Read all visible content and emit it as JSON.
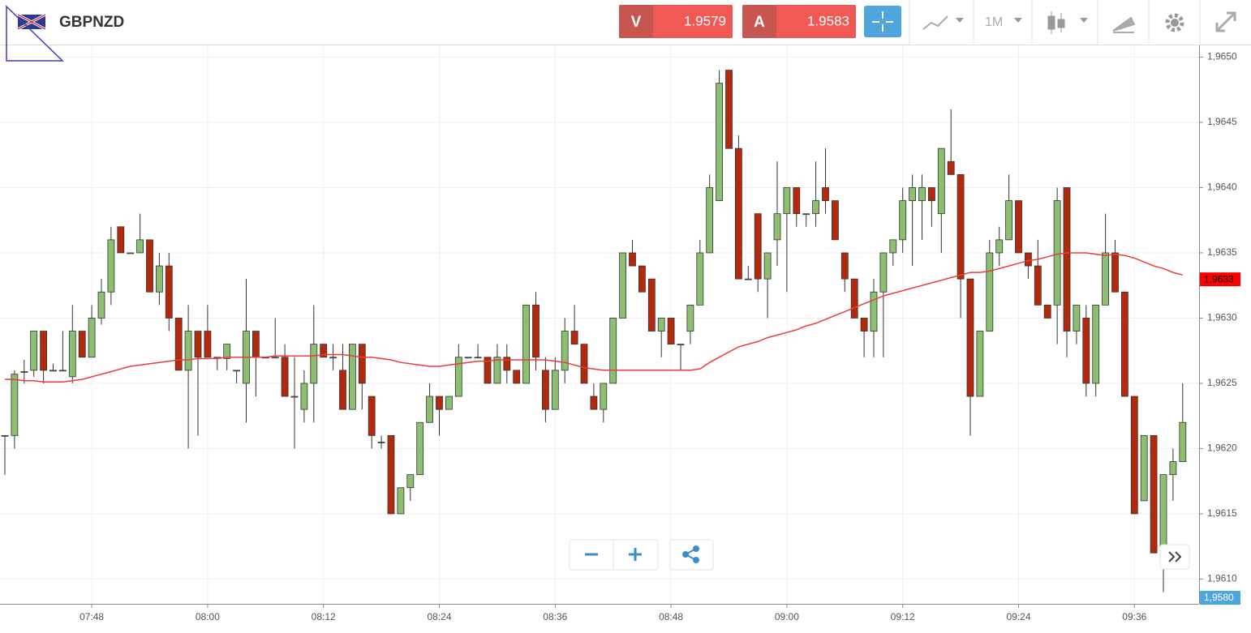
{
  "toolbar": {
    "bid_label": "V",
    "bid": 1.9579,
    "ask_label": "A",
    "ask": 1.9583,
    "timeframe": "1M"
  },
  "chart_data": {
    "type": "candlestick",
    "title": "GBPNZD",
    "categories": [
      null,
      null,
      null,
      null,
      null,
      null,
      null,
      null,
      null,
      "07:48",
      null,
      null,
      null,
      null,
      null,
      null,
      null,
      null,
      null,
      null,
      null,
      "08:00",
      null,
      null,
      null,
      null,
      null,
      null,
      null,
      null,
      null,
      null,
      null,
      "08:12",
      null,
      null,
      null,
      null,
      null,
      null,
      null,
      null,
      null,
      null,
      null,
      "08:24",
      null,
      null,
      null,
      null,
      null,
      null,
      null,
      null,
      null,
      null,
      null,
      "08:36",
      null,
      null,
      null,
      null,
      null,
      null,
      null,
      null,
      null,
      null,
      null,
      "08:48",
      null,
      null,
      null,
      null,
      null,
      null,
      null,
      null,
      null,
      null,
      null,
      "09:00",
      null,
      null,
      null,
      null,
      null,
      null,
      null,
      null,
      null,
      null,
      null,
      "09:12",
      null,
      null,
      null,
      null,
      null,
      null,
      null,
      null,
      null,
      null,
      null,
      "09:24",
      null,
      null,
      null,
      null,
      null,
      null,
      null,
      null,
      null,
      null,
      null,
      "09:36",
      null,
      null,
      null,
      null,
      null
    ],
    "open": [
      1.9621,
      1.9621,
      1.96259,
      1.9626,
      1.9629,
      1.9626,
      1.9626,
      1.96255,
      1.9629,
      1.9627,
      1.963,
      1.9632,
      1.9637,
      1.9635,
      1.9635,
      1.9636,
      1.9632,
      1.9634,
      1.963,
      1.9626,
      1.9629,
      1.9629,
      1.9627,
      1.96269,
      1.9626,
      1.9625,
      1.9629,
      1.9627,
      1.9627,
      1.9627,
      1.9624,
      1.9623,
      1.9625,
      1.9628,
      1.9627,
      1.9626,
      1.9623,
      1.9628,
      1.9624,
      1.96205,
      1.9621,
      1.9615,
      1.9617,
      1.9618,
      1.9622,
      1.9624,
      1.9623,
      1.9624,
      1.9627,
      1.9627,
      1.9627,
      1.9625,
      1.9627,
      1.9626,
      1.9625,
      1.9631,
      1.9626,
      1.9623,
      1.9626,
      1.9629,
      1.9628,
      1.9624,
      1.9623,
      1.9625,
      1.963,
      1.9635,
      1.9634,
      1.9633,
      1.9629,
      1.963,
      1.9628,
      1.9629,
      1.9631,
      1.9635,
      1.9639,
      1.9649,
      1.9643,
      1.9633,
      1.9638,
      1.9633,
      1.9636,
      1.9638,
      1.964,
      1.9638,
      1.9638,
      1.964,
      1.9639,
      1.9635,
      1.9633,
      1.963,
      1.9629,
      1.9632,
      1.9635,
      1.9636,
      1.9639,
      1.9639,
      1.964,
      1.9638,
      1.9642,
      1.9641,
      1.9633,
      1.9624,
      1.9629,
      1.9635,
      1.9636,
      1.9639,
      1.9635,
      1.9634,
      1.9631,
      1.9631,
      1.964,
      1.9629,
      1.963,
      1.9625,
      1.9631,
      1.9635,
      1.9632,
      1.9624,
      1.9616,
      1.9621,
      1.9612,
      1.9618,
      1.9619
    ],
    "high": [
      1.9621,
      1.9626,
      1.96268,
      1.9629,
      1.9629,
      1.96265,
      1.9629,
      1.9631,
      1.9629,
      1.9631,
      1.9633,
      1.9637,
      1.9637,
      1.9635,
      1.9638,
      1.9636,
      1.9635,
      1.9635,
      1.963,
      1.9631,
      1.9629,
      1.9631,
      1.9627,
      1.9628,
      1.9626,
      1.9633,
      1.9629,
      1.9627,
      1.963,
      1.9628,
      1.9627,
      1.9626,
      1.9631,
      1.9628,
      1.9628,
      1.9628,
      1.9628,
      1.9628,
      1.9624,
      1.9621,
      1.9621,
      1.9617,
      1.9618,
      1.9622,
      1.9625,
      1.9624,
      1.9624,
      1.9628,
      1.9627,
      1.9628,
      1.9627,
      1.9628,
      1.9628,
      1.9626,
      1.9631,
      1.9632,
      1.9627,
      1.9627,
      1.963,
      1.9631,
      1.9628,
      1.9625,
      1.9625,
      1.963,
      1.9635,
      1.9636,
      1.9634,
      1.9633,
      1.963,
      1.963,
      1.9628,
      1.9631,
      1.9636,
      1.9641,
      1.9649,
      1.9649,
      1.9644,
      1.9634,
      1.9638,
      1.9635,
      1.9642,
      1.964,
      1.964,
      1.9638,
      1.9642,
      1.9643,
      1.9639,
      1.9635,
      1.9633,
      1.963,
      1.9633,
      1.9635,
      1.9636,
      1.964,
      1.9641,
      1.9641,
      1.964,
      1.9643,
      1.9646,
      1.9641,
      1.9633,
      1.9629,
      1.9636,
      1.9637,
      1.9641,
      1.9639,
      1.9635,
      1.9636,
      1.9631,
      1.964,
      1.964,
      1.9631,
      1.9631,
      1.9631,
      1.9638,
      1.9636,
      1.9632,
      1.9624,
      1.9621,
      1.9621,
      1.9618,
      1.962,
      1.9625
    ],
    "low": [
      1.9618,
      1.962,
      1.9625,
      1.96255,
      1.9625,
      1.9626,
      1.9626,
      1.9625,
      1.9627,
      1.9627,
      1.96295,
      1.9631,
      1.9635,
      1.9635,
      1.9635,
      1.9632,
      1.9631,
      1.9629,
      1.9626,
      1.962,
      1.9621,
      1.9627,
      1.9626,
      1.9626,
      1.9625,
      1.9622,
      1.9624,
      1.9627,
      1.9627,
      1.9624,
      1.962,
      1.9622,
      1.9622,
      1.9627,
      1.9626,
      1.9623,
      1.9623,
      1.9623,
      1.962,
      1.962,
      1.9615,
      1.9615,
      1.9616,
      1.9618,
      1.9622,
      1.9621,
      1.9623,
      1.9624,
      1.9627,
      1.9627,
      1.9625,
      1.9625,
      1.9625,
      1.9625,
      1.9625,
      1.9626,
      1.9622,
      1.9623,
      1.9625,
      1.9628,
      1.9625,
      1.9623,
      1.9622,
      1.9625,
      1.963,
      1.9634,
      1.9632,
      1.9629,
      1.9627,
      1.9628,
      1.9626,
      1.9628,
      1.9631,
      1.9635,
      1.9639,
      1.9643,
      1.9633,
      1.9633,
      1.9632,
      1.963,
      1.9634,
      1.9632,
      1.9637,
      1.9637,
      1.9637,
      1.9638,
      1.9636,
      1.9632,
      1.963,
      1.9627,
      1.9627,
      1.9627,
      1.9634,
      1.9635,
      1.9634,
      1.9636,
      1.9637,
      1.9635,
      1.9641,
      1.963,
      1.9621,
      1.9624,
      1.9629,
      1.9634,
      1.9636,
      1.9635,
      1.9633,
      1.9631,
      1.963,
      1.9628,
      1.9627,
      1.9628,
      1.9624,
      1.9624,
      1.9631,
      1.9632,
      1.9624,
      1.9615,
      1.9616,
      1.9612,
      1.9609,
      1.9616,
      1.9619
    ],
    "close": [
      1.9621,
      1.96257,
      1.96259,
      1.9629,
      1.9626,
      1.9626,
      1.9626,
      1.9629,
      1.9627,
      1.963,
      1.9632,
      1.9636,
      1.9635,
      1.9635,
      1.9636,
      1.9632,
      1.9634,
      1.963,
      1.9626,
      1.9629,
      1.9627,
      1.9627,
      1.9627,
      1.9628,
      1.9626,
      1.9629,
      1.9627,
      1.9627,
      1.9627,
      1.9624,
      1.9624,
      1.9625,
      1.9628,
      1.9627,
      1.9627,
      1.9623,
      1.9628,
      1.9625,
      1.9621,
      1.96205,
      1.9615,
      1.9617,
      1.9618,
      1.9622,
      1.9624,
      1.9623,
      1.9624,
      1.9627,
      1.9627,
      1.9627,
      1.9625,
      1.9627,
      1.9626,
      1.9625,
      1.9631,
      1.9627,
      1.9623,
      1.9626,
      1.9629,
      1.9628,
      1.9625,
      1.9623,
      1.9625,
      1.963,
      1.9635,
      1.9634,
      1.9632,
      1.9629,
      1.963,
      1.9628,
      1.9628,
      1.9631,
      1.9635,
      1.964,
      1.9648,
      1.9643,
      1.9633,
      1.9633,
      1.9633,
      1.9635,
      1.9638,
      1.964,
      1.9638,
      1.9638,
      1.9639,
      1.9639,
      1.9636,
      1.9633,
      1.963,
      1.9629,
      1.9632,
      1.9635,
      1.9636,
      1.9639,
      1.964,
      1.964,
      1.9639,
      1.9643,
      1.9641,
      1.9633,
      1.9624,
      1.9629,
      1.9635,
      1.9636,
      1.9639,
      1.9635,
      1.9634,
      1.9631,
      1.963,
      1.9639,
      1.9629,
      1.9631,
      1.9625,
      1.9631,
      1.9635,
      1.9632,
      1.9624,
      1.9615,
      1.9621,
      1.9612,
      1.9618,
      1.9619,
      1.9622
    ],
    "up_color": "#8cbf72",
    "down_color": "#b3290c",
    "ma": {
      "color": "#ee3b3b",
      "values": [
        1.96253,
        1.96253,
        1.96252,
        1.96252,
        1.96251,
        1.96251,
        1.96251,
        1.96252,
        1.96253,
        1.96255,
        1.96257,
        1.96259,
        1.96261,
        1.96263,
        1.96264,
        1.96265,
        1.96266,
        1.96267,
        1.96268,
        1.96268,
        1.96269,
        1.96269,
        1.96269,
        1.9627,
        1.9627,
        1.9627,
        1.9627,
        1.9627,
        1.96271,
        1.96271,
        1.96271,
        1.96271,
        1.96271,
        1.96272,
        1.96272,
        1.96272,
        1.96271,
        1.9627,
        1.9627,
        1.96269,
        1.96268,
        1.96266,
        1.96265,
        1.96264,
        1.96263,
        1.96263,
        1.96264,
        1.96265,
        1.96266,
        1.96267,
        1.96267,
        1.96268,
        1.96268,
        1.96268,
        1.96268,
        1.96268,
        1.96268,
        1.96267,
        1.96266,
        1.96264,
        1.96262,
        1.96261,
        1.9626,
        1.9626,
        1.9626,
        1.9626,
        1.9626,
        1.9626,
        1.9626,
        1.9626,
        1.9626,
        1.9626,
        1.96261,
        1.96266,
        1.9627,
        1.96274,
        1.96278,
        1.9628,
        1.96282,
        1.96285,
        1.96287,
        1.96289,
        1.96291,
        1.96294,
        1.96296,
        1.96299,
        1.96302,
        1.96305,
        1.96308,
        1.96311,
        1.96314,
        1.96317,
        1.96319,
        1.96321,
        1.96323,
        1.96325,
        1.96327,
        1.96329,
        1.96331,
        1.96333,
        1.96335,
        1.96335,
        1.96336,
        1.96338,
        1.9634,
        1.96342,
        1.96344,
        1.96345,
        1.96347,
        1.96349,
        1.9635,
        1.9635,
        1.9635,
        1.96349,
        1.96348,
        1.96349,
        1.96348,
        1.96346,
        1.96343,
        1.9634,
        1.96338,
        1.96335,
        1.96333
      ]
    },
    "price_markers": [
      {
        "value": 1.9633,
        "label": "1,9633",
        "color": "#ff0000"
      },
      {
        "value": 1.958,
        "label": "1,9580",
        "color": "#4aa6dc"
      }
    ],
    "ylim": [
      1.96081,
      1.96509
    ],
    "yticks": [
      {
        "value": 1.961,
        "label": "1,9610"
      },
      {
        "value": 1.9615,
        "label": "1,9615"
      },
      {
        "value": 1.962,
        "label": "1,9620"
      },
      {
        "value": 1.9625,
        "label": "1,9625"
      },
      {
        "value": 1.963,
        "label": "1,9630"
      },
      {
        "value": 1.9635,
        "label": "1,9635"
      },
      {
        "value": 1.964,
        "label": "1,9640"
      },
      {
        "value": 1.9645,
        "label": "1,9645"
      },
      {
        "value": 1.965,
        "label": "1,9650"
      }
    ],
    "grid": true
  }
}
